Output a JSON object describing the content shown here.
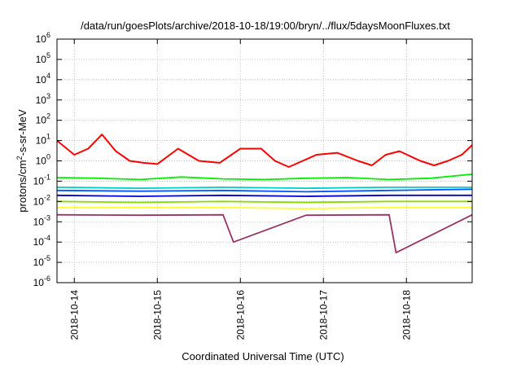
{
  "chart_data": {
    "type": "line",
    "title": "/data/run/goesPlots/archive/2018-10-18/19:00/bryn/../flux/5daysMoonFluxes.txt",
    "xlabel": "Coordinated Universal Time (UTC)",
    "ylabel": "protons/cm²-s-sr-MeV",
    "ylabel_parts": {
      "before": "protons/cm",
      "sup": "2",
      "after": "-s-sr-MeV"
    },
    "yscale": "log",
    "ylim": [
      1e-06,
      1000000.0
    ],
    "ytick_exponents": [
      -6,
      -5,
      -4,
      -3,
      -2,
      -1,
      0,
      1,
      2,
      3,
      4,
      5,
      6
    ],
    "ytick_base": "10",
    "xlim": [
      "2018-10-13T19:00",
      "2018-10-18T19:00"
    ],
    "xticks": [
      "2018-10-14",
      "2018-10-15",
      "2018-10-16",
      "2018-10-17",
      "2018-10-18"
    ],
    "grid": true,
    "series": [
      {
        "color": "#ff0000",
        "x": [
          "2018-10-13T19:00",
          "2018-10-14T00:00",
          "2018-10-14T04:00",
          "2018-10-14T08:00",
          "2018-10-14T12:00",
          "2018-10-14T16:00",
          "2018-10-14T20:00",
          "2018-10-15T00:00",
          "2018-10-15T06:00",
          "2018-10-15T12:00",
          "2018-10-15T18:00",
          "2018-10-16T00:00",
          "2018-10-16T06:00",
          "2018-10-16T10:00",
          "2018-10-16T14:00",
          "2018-10-16T18:00",
          "2018-10-16T22:00",
          "2018-10-17T04:00",
          "2018-10-17T10:00",
          "2018-10-17T14:00",
          "2018-10-17T18:00",
          "2018-10-17T22:00",
          "2018-10-18T04:00",
          "2018-10-18T08:00",
          "2018-10-18T12:00",
          "2018-10-18T16:00",
          "2018-10-18T19:00"
        ],
        "values": [
          10,
          2,
          4,
          20,
          3,
          1,
          0.8,
          0.7,
          4,
          1,
          0.8,
          4,
          4,
          1,
          0.5,
          1,
          2,
          2.5,
          1,
          0.6,
          2,
          3,
          1,
          0.6,
          1,
          2,
          6
        ]
      },
      {
        "color": "#00ee00",
        "x": [
          "2018-10-13T19:00",
          "2018-10-14T07:00",
          "2018-10-14T19:00",
          "2018-10-15T07:00",
          "2018-10-15T19:00",
          "2018-10-16T07:00",
          "2018-10-16T19:00",
          "2018-10-17T07:00",
          "2018-10-17T19:00",
          "2018-10-18T07:00",
          "2018-10-18T19:00"
        ],
        "values": [
          0.15,
          0.14,
          0.12,
          0.16,
          0.13,
          0.12,
          0.14,
          0.15,
          0.12,
          0.14,
          0.22
        ]
      },
      {
        "color": "#00cccc",
        "x": [
          "2018-10-13T19:00",
          "2018-10-14T19:00",
          "2018-10-15T19:00",
          "2018-10-16T19:00",
          "2018-10-17T19:00",
          "2018-10-18T19:00"
        ],
        "values": [
          0.05,
          0.045,
          0.05,
          0.045,
          0.05,
          0.05
        ]
      },
      {
        "color": "#0055ff",
        "x": [
          "2018-10-13T19:00",
          "2018-10-14T19:00",
          "2018-10-15T19:00",
          "2018-10-16T19:00",
          "2018-10-17T19:00",
          "2018-10-18T19:00"
        ],
        "values": [
          0.035,
          0.032,
          0.035,
          0.03,
          0.035,
          0.04
        ]
      },
      {
        "color": "#0000cc",
        "x": [
          "2018-10-13T19:00",
          "2018-10-14T19:00",
          "2018-10-15T19:00",
          "2018-10-16T19:00",
          "2018-10-17T19:00",
          "2018-10-18T19:00"
        ],
        "values": [
          0.02,
          0.018,
          0.02,
          0.018,
          0.02,
          0.02
        ]
      },
      {
        "color": "#88dd00",
        "x": [
          "2018-10-13T19:00",
          "2018-10-14T19:00",
          "2018-10-15T19:00",
          "2018-10-16T19:00",
          "2018-10-17T19:00",
          "2018-10-18T19:00"
        ],
        "values": [
          0.01,
          0.009,
          0.01,
          0.009,
          0.01,
          0.01
        ]
      },
      {
        "color": "#ffff33",
        "x": [
          "2018-10-13T19:00",
          "2018-10-14T19:00",
          "2018-10-15T19:00",
          "2018-10-16T19:00",
          "2018-10-17T19:00",
          "2018-10-18T19:00"
        ],
        "values": [
          0.005,
          0.005,
          0.005,
          0.0045,
          0.005,
          0.005
        ]
      },
      {
        "color": "#993366",
        "x": [
          "2018-10-13T19:00",
          "2018-10-14T19:00",
          "2018-10-15T19:00",
          "2018-10-15T22:00",
          "2018-10-16T19:00",
          "2018-10-17T19:00",
          "2018-10-17T21:00",
          "2018-10-18T19:00"
        ],
        "values": [
          0.0022,
          0.0021,
          0.0022,
          0.0001,
          0.0021,
          0.0022,
          3e-05,
          0.0022
        ]
      }
    ]
  }
}
